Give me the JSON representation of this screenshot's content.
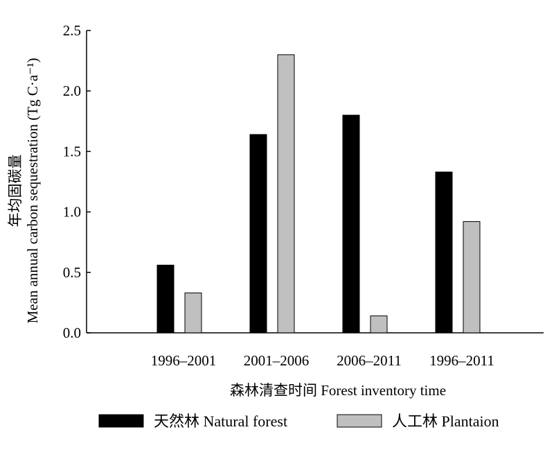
{
  "chart_data": {
    "type": "bar",
    "categories": [
      "1996–2001",
      "2001–2006",
      "2006–2011",
      "1996–2011"
    ],
    "series": [
      {
        "name": "天然林  Natural forest",
        "values": [
          0.56,
          1.64,
          1.8,
          1.33
        ],
        "color": "#000000"
      },
      {
        "name": "人工林  Plantaion",
        "values": [
          0.33,
          2.3,
          0.14,
          0.92
        ],
        "color": "#c0c0c0"
      }
    ],
    "xlabel": "森林清查时间  Forest inventory time",
    "ylabel_line1": "年均固碳量",
    "ylabel_line2": "Mean annual carbon sequestration (Tg C·a⁻¹)",
    "ylim": [
      0,
      2.5
    ],
    "yticks": [
      "0.0",
      "0.5",
      "1.0",
      "1.5",
      "2.0",
      "2.5"
    ],
    "legend_position": "bottom",
    "grid": false
  }
}
